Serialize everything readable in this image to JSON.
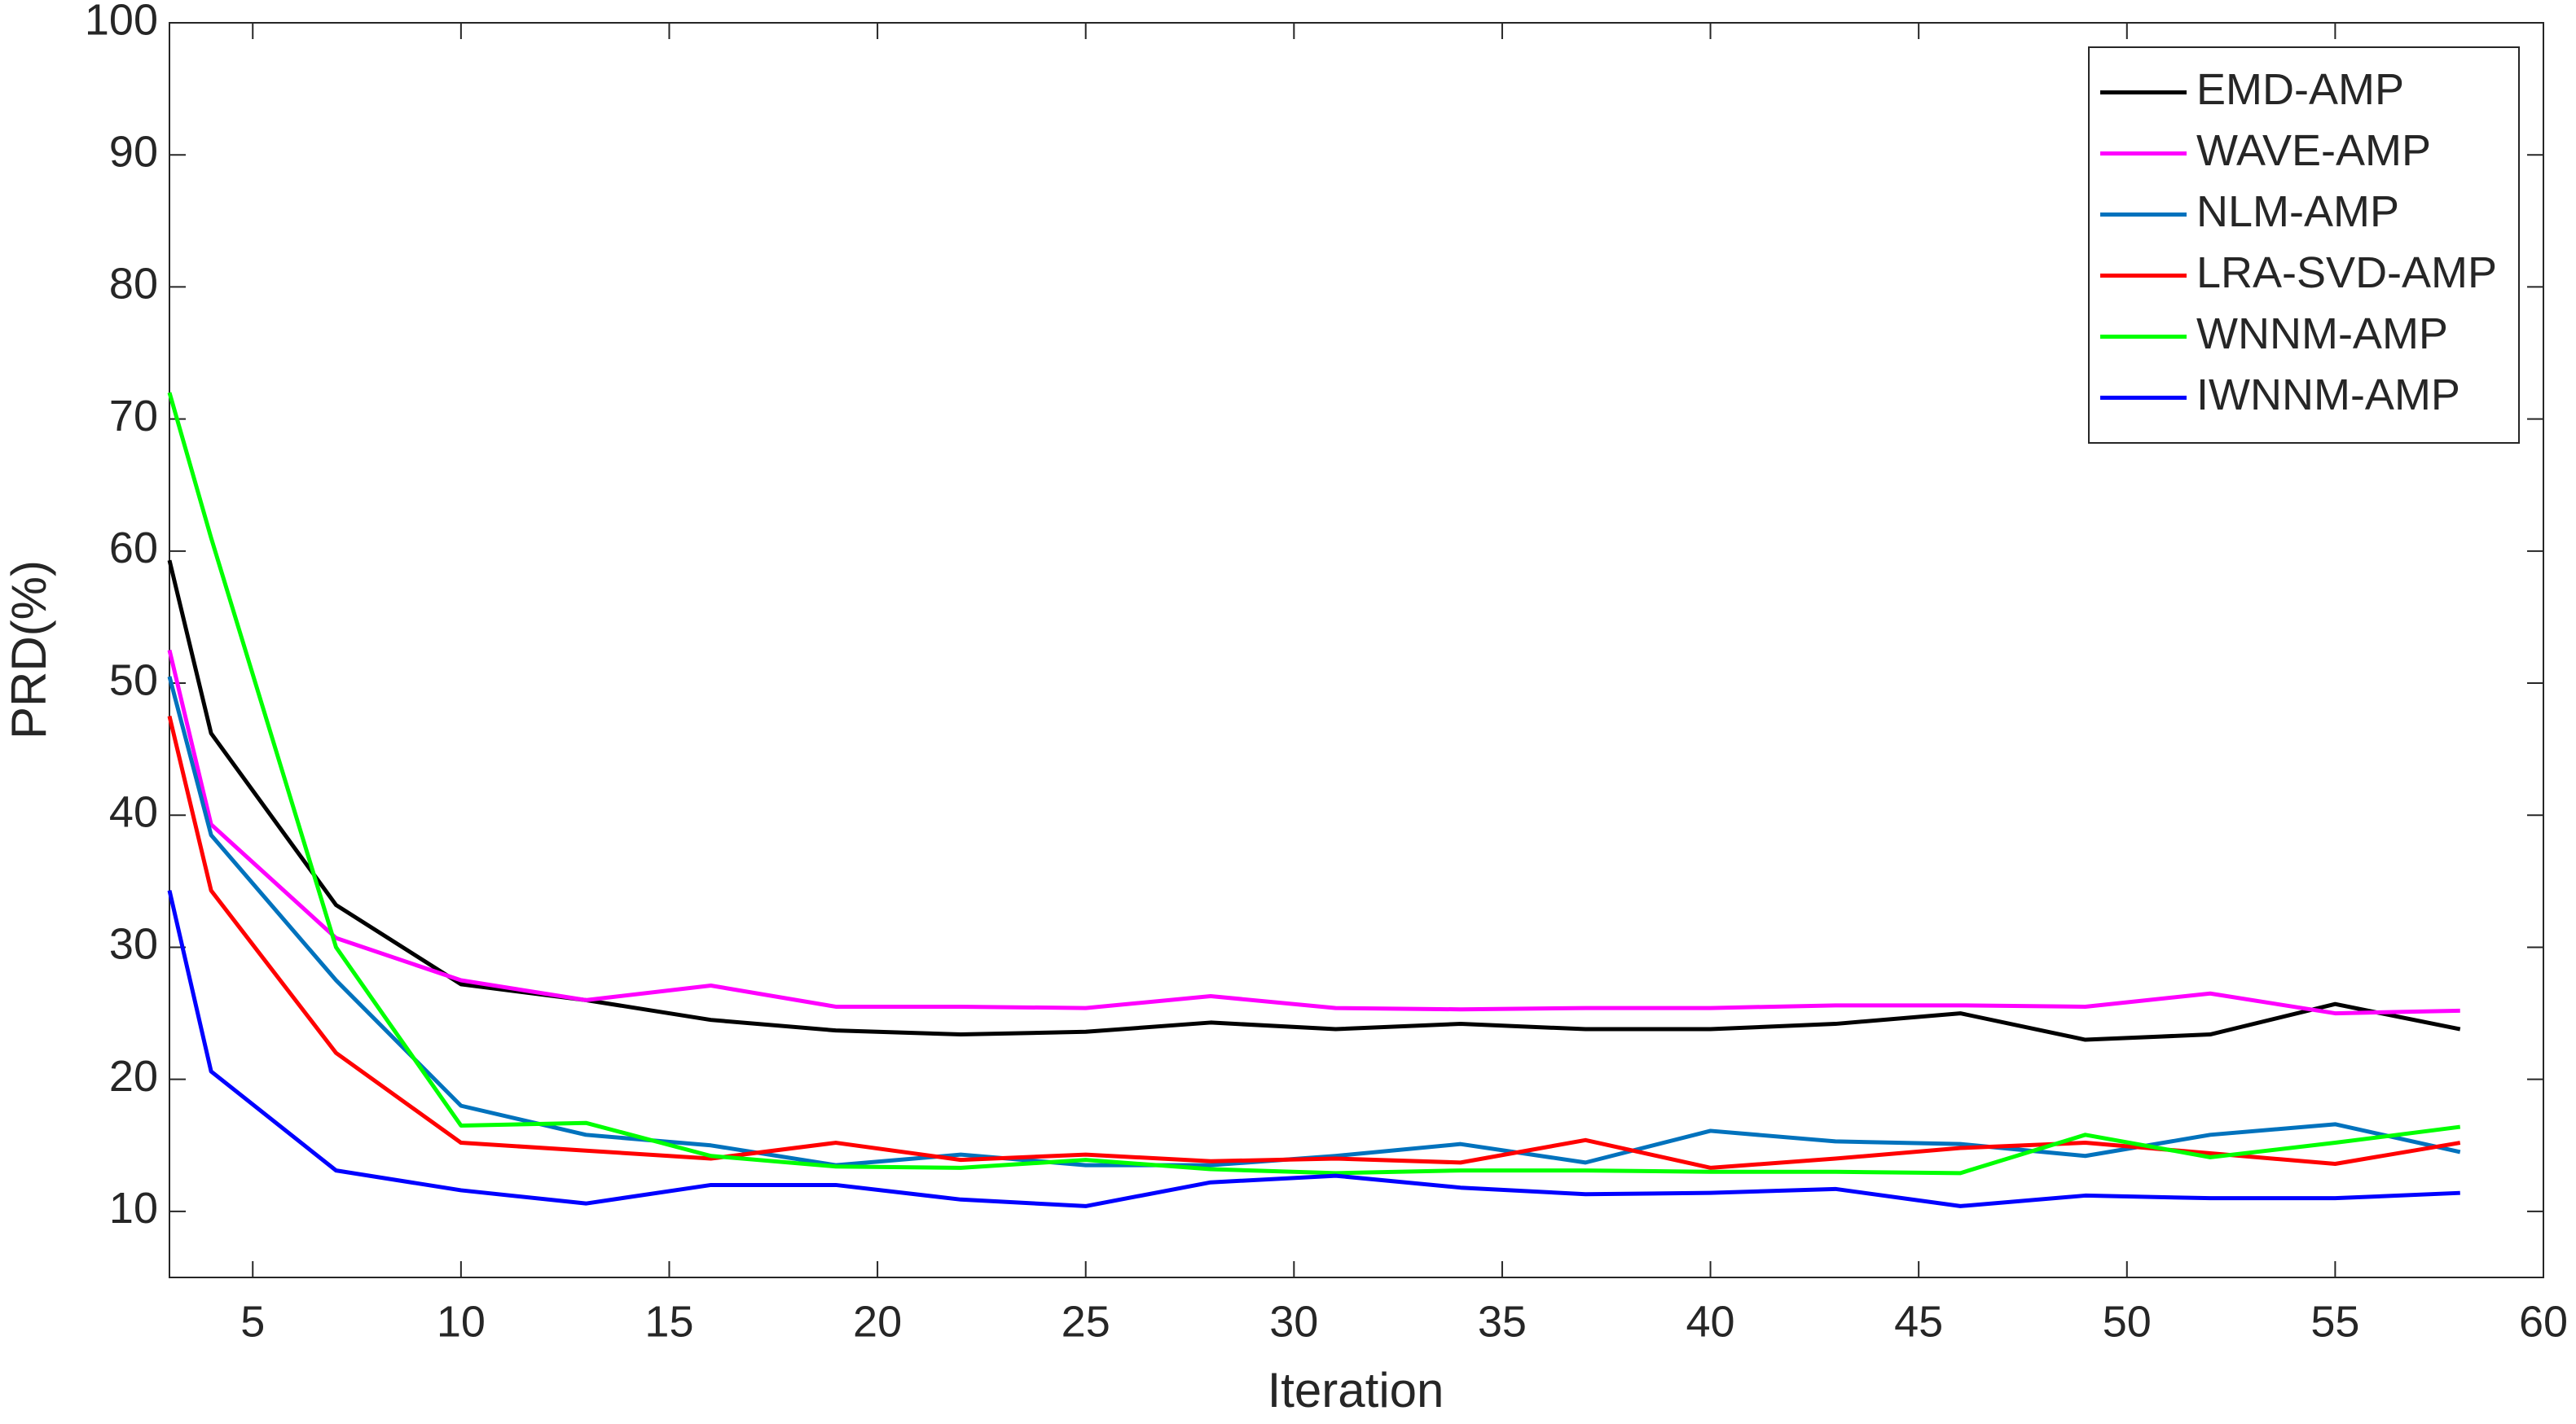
{
  "chart_data": {
    "type": "line",
    "x_label": "Iteration",
    "y_label": "PRD(%)",
    "x": [
      3,
      4,
      7,
      10,
      13,
      16,
      19,
      22,
      25,
      28,
      31,
      34,
      37,
      40,
      43,
      46,
      49,
      52,
      55,
      58
    ],
    "series": [
      {
        "name": "EMD-AMP",
        "color": "#000000",
        "values": [
          59.3,
          46.2,
          33.2,
          27.2,
          26.0,
          24.5,
          23.7,
          23.4,
          23.6,
          24.3,
          23.8,
          24.2,
          23.8,
          23.8,
          24.2,
          25.0,
          23.0,
          23.4,
          25.7,
          23.8
        ]
      },
      {
        "name": "WAVE-AMP",
        "color": "#ff00ff",
        "values": [
          52.5,
          39.3,
          30.7,
          27.5,
          26.0,
          27.1,
          25.5,
          25.5,
          25.4,
          26.3,
          25.4,
          25.3,
          25.4,
          25.4,
          25.6,
          25.6,
          25.5,
          26.5,
          25.0,
          25.2
        ]
      },
      {
        "name": "NLM-AMP",
        "color": "#0072bd",
        "values": [
          50.5,
          38.5,
          27.5,
          18.0,
          15.8,
          15.0,
          13.5,
          14.3,
          13.5,
          13.5,
          14.2,
          15.1,
          13.7,
          16.1,
          15.3,
          15.1,
          14.2,
          15.8,
          16.6,
          14.5
        ]
      },
      {
        "name": "LRA-SVD-AMP",
        "color": "#ff0000",
        "values": [
          47.5,
          34.3,
          22.0,
          15.2,
          14.6,
          14.0,
          15.2,
          13.9,
          14.3,
          13.8,
          14.0,
          13.7,
          15.4,
          13.3,
          14.0,
          14.8,
          15.2,
          14.4,
          13.6,
          15.2
        ]
      },
      {
        "name": "WNNM-AMP",
        "color": "#00ff00",
        "values": [
          72.0,
          61.0,
          30.0,
          16.5,
          16.7,
          14.2,
          13.4,
          13.3,
          13.9,
          13.2,
          12.9,
          13.1,
          13.1,
          13.0,
          13.0,
          12.9,
          15.8,
          14.1,
          15.2,
          16.4
        ]
      },
      {
        "name": "IWNNM-AMP",
        "color": "#0000ff",
        "values": [
          34.3,
          20.6,
          13.1,
          11.6,
          10.6,
          12.0,
          12.0,
          10.9,
          10.4,
          12.2,
          12.7,
          11.8,
          11.3,
          11.4,
          11.7,
          10.4,
          11.2,
          11.0,
          11.0,
          11.4
        ]
      }
    ],
    "xlim": [
      3,
      60
    ],
    "xticks": [
      5,
      10,
      15,
      20,
      25,
      30,
      35,
      40,
      45,
      50,
      55,
      60
    ],
    "ylim": [
      5,
      100
    ],
    "yticks": [
      10,
      20,
      30,
      40,
      50,
      60,
      70,
      80,
      90,
      100
    ],
    "grid": false,
    "legend": "northeast"
  }
}
